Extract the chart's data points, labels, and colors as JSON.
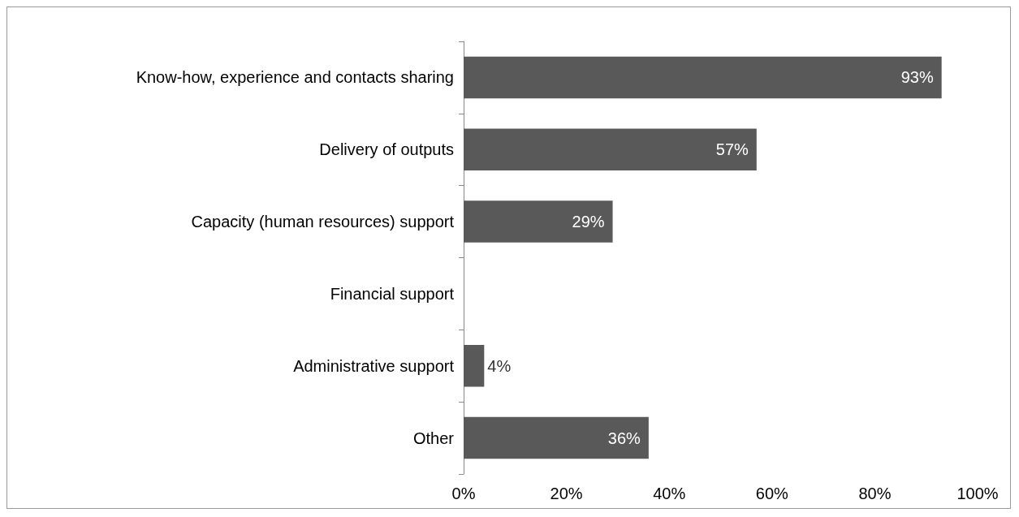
{
  "chart_data": {
    "type": "bar",
    "orientation": "horizontal",
    "categories": [
      "Know-how, experience and contacts sharing",
      "Delivery of outputs",
      "Capacity (human resources) support",
      "Financial support",
      "Administrative support",
      "Other"
    ],
    "values": [
      93,
      57,
      29,
      0,
      4,
      36
    ],
    "value_labels": [
      "93%",
      "57%",
      "29%",
      null,
      "4%",
      "36%"
    ],
    "color": "#595959",
    "xlim": [
      0,
      100
    ],
    "xticks": [
      {
        "value": 0,
        "label": "0%"
      },
      {
        "value": 20,
        "label": "20%"
      },
      {
        "value": 40,
        "label": "40%"
      },
      {
        "value": 60,
        "label": "60%"
      },
      {
        "value": 80,
        "label": "80%"
      },
      {
        "value": 100,
        "label": "100%"
      }
    ],
    "grid": false
  }
}
